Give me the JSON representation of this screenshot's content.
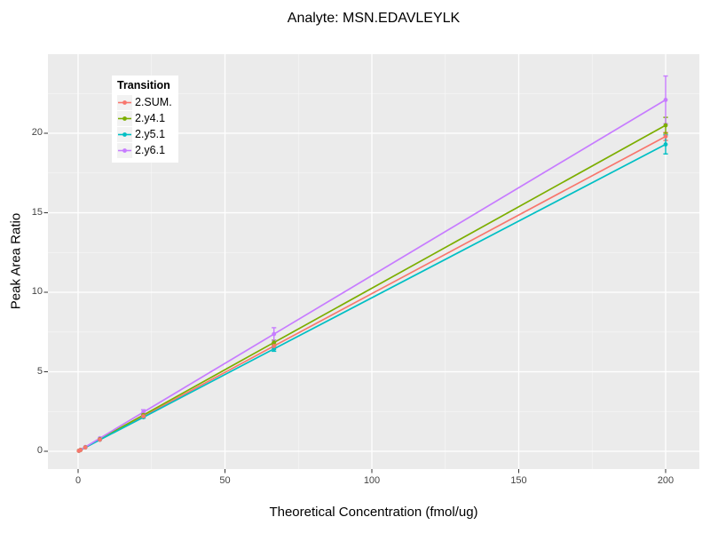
{
  "title": "Analyte: MSN.EDAVLEYLK",
  "x_axis_label": "Theoretical Concentration (fmol/ug)",
  "y_axis_label": "Peak Area Ratio",
  "legend": {
    "title": "Transition",
    "items": [
      {
        "label": "2.SUM.",
        "color": "#F8766D"
      },
      {
        "label": "2.y4.1",
        "color": "#7CAE00"
      },
      {
        "label": "2.y5.1",
        "color": "#00BFC4"
      },
      {
        "label": "2.y6.1",
        "color": "#C77CFF"
      }
    ]
  },
  "chart_data": {
    "type": "line",
    "title": "Analyte: MSN.EDAVLEYLK",
    "xlabel": "Theoretical Concentration (fmol/ug)",
    "ylabel": "Peak Area Ratio",
    "x": [
      0.27,
      0.82,
      2.47,
      7.41,
      22.22,
      66.67,
      200
    ],
    "x_ticks": [
      0,
      50,
      100,
      150,
      200
    ],
    "x_minor_ticks": [
      25,
      75,
      125,
      175
    ],
    "y_ticks": [
      0,
      5,
      10,
      15,
      20
    ],
    "y_minor_ticks": [
      2.5,
      7.5,
      12.5,
      17.5,
      22.5
    ],
    "xlim": [
      -10.3,
      211.5
    ],
    "ylim": [
      -1.1,
      25.0
    ],
    "grid": "ggplot gray panel, white major and minor gridlines",
    "legend_position": "inside top-left",
    "series": [
      {
        "name": "2.SUM.",
        "color": "#F8766D",
        "values": [
          0.03,
          0.08,
          0.24,
          0.73,
          2.2,
          6.62,
          19.8
        ],
        "errors": [
          0,
          0,
          0,
          0,
          0.05,
          0.2,
          0.25
        ]
      },
      {
        "name": "2.y4.1",
        "color": "#7CAE00",
        "values": [
          0.03,
          0.08,
          0.25,
          0.76,
          2.28,
          6.84,
          20.5
        ],
        "errors": [
          0,
          0,
          0,
          0,
          0.05,
          0.15,
          0.5
        ]
      },
      {
        "name": "2.y5.1",
        "color": "#00BFC4",
        "values": [
          0.03,
          0.08,
          0.24,
          0.72,
          2.14,
          6.44,
          19.3
        ],
        "errors": [
          0,
          0,
          0,
          0,
          0.05,
          0.15,
          0.6
        ]
      },
      {
        "name": "2.y6.1",
        "color": "#C77CFF",
        "values": [
          0.03,
          0.09,
          0.27,
          0.82,
          2.46,
          7.37,
          22.1
        ],
        "errors": [
          0,
          0,
          0,
          0,
          0.15,
          0.4,
          1.5
        ]
      }
    ]
  },
  "colors": {
    "panel_bg": "#EBEBEB",
    "grid_major": "#FFFFFF",
    "grid_minor": "#FFFFFF",
    "tick_mark": "#333333",
    "tick_label": "#444444",
    "text": "#000000",
    "legend_key_bg": "#F2F2F2",
    "figure_bg": "#FFFFFF"
  }
}
